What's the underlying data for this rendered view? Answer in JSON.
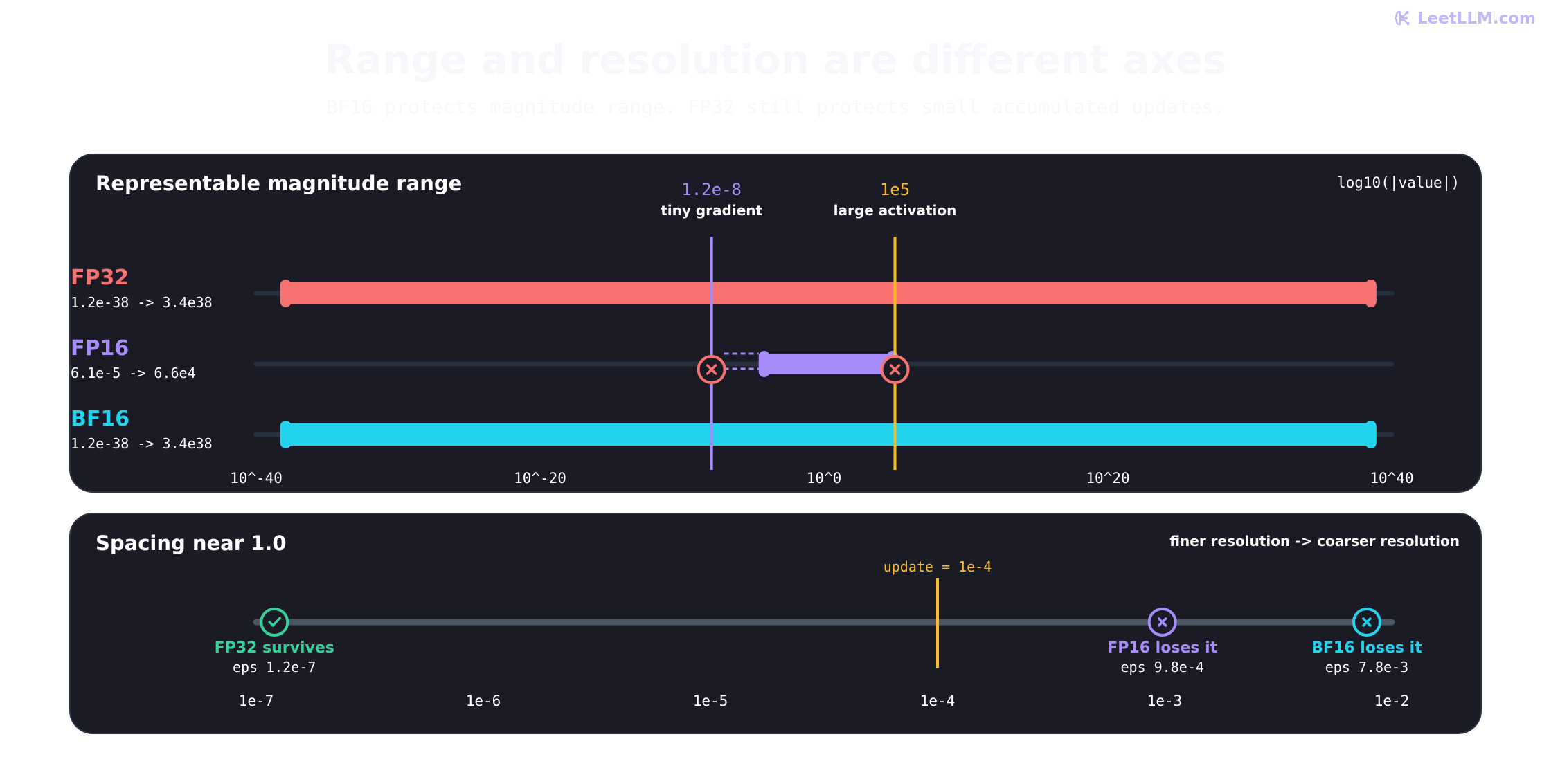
{
  "brand": {
    "name": "LeetLLM.com",
    "icon": "brain-circuit-icon",
    "color": "#c4b5fd"
  },
  "header": {
    "title": "Range and resolution are different axes",
    "subtitle": "BF16 protects magnitude range. FP32 still protects small accumulated updates."
  },
  "colors": {
    "fp32": "#f87171",
    "fp16": "#a78bfa",
    "bf16": "#22d3ee",
    "marker": "#fbbf24",
    "survive": "#34d399",
    "panel_bg": "#1b1b26",
    "track": "#26303f"
  },
  "range_panel": {
    "title": "Representable magnitude range",
    "axis_caption": "log10(|value|)",
    "axis": {
      "min_exp": -40,
      "max_exp": 40
    },
    "ticks": [
      {
        "exp": -40,
        "label": "10^-40"
      },
      {
        "exp": -20,
        "label": "10^-20"
      },
      {
        "exp": 0,
        "label": "10^0"
      },
      {
        "exp": 20,
        "label": "10^20"
      },
      {
        "exp": 40,
        "label": "10^40"
      }
    ],
    "markers": [
      {
        "exp": -7.92,
        "value": "1.2e-8",
        "caption": "tiny gradient",
        "color": "#a78bfa"
      },
      {
        "exp": 5,
        "value": "1e5",
        "caption": "large activation",
        "color": "#fbbf24"
      }
    ],
    "formats": [
      {
        "name": "FP32",
        "range": "1.2e-38 -> 3.4e38",
        "min_exp": -37.92,
        "max_exp": 38.53,
        "color": "#f87171"
      },
      {
        "name": "FP16",
        "range": "6.1e-5 -> 6.6e4",
        "min_exp": -4.21,
        "max_exp": 4.82,
        "color": "#a78bfa",
        "lost_markers": [
          -7.92,
          5
        ]
      },
      {
        "name": "BF16",
        "range": "1.2e-38 -> 3.4e38",
        "min_exp": -37.92,
        "max_exp": 38.53,
        "color": "#22d3ee"
      }
    ]
  },
  "spacing_panel": {
    "title": "Spacing near 1.0",
    "caption": "finer resolution -> coarser resolution",
    "axis": {
      "min_exp": -7,
      "max_exp": -2
    },
    "ticks": [
      {
        "exp": -7,
        "label": "1e-7"
      },
      {
        "exp": -6,
        "label": "1e-6"
      },
      {
        "exp": -5,
        "label": "1e-5"
      },
      {
        "exp": -4,
        "label": "1e-4"
      },
      {
        "exp": -3,
        "label": "1e-3"
      },
      {
        "exp": -2,
        "label": "1e-2"
      }
    ],
    "update": {
      "exp": -4,
      "label": "update = 1e-4",
      "color": "#fbbf24"
    },
    "formats": [
      {
        "exp": -6.92,
        "name": "FP32 survives",
        "eps": "eps 1.2e-7",
        "status": "check",
        "color": "#34d399"
      },
      {
        "exp": -3.01,
        "name": "FP16 loses it",
        "eps": "eps 9.8e-4",
        "status": "cross",
        "color": "#a78bfa"
      },
      {
        "exp": -2.11,
        "name": "BF16 loses it",
        "eps": "eps 7.8e-3",
        "status": "cross",
        "color": "#22d3ee"
      }
    ]
  }
}
